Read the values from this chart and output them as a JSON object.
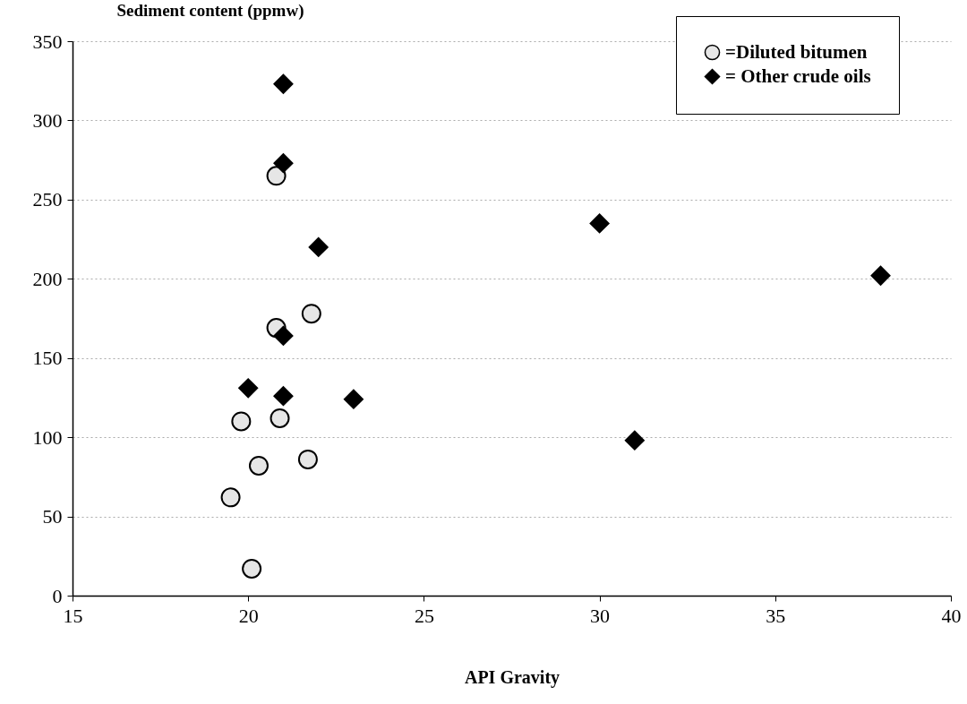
{
  "chart_data": {
    "type": "scatter",
    "ylabel": "Sediment content (ppmw)",
    "xlabel": "API Gravity",
    "xlim": [
      15,
      40
    ],
    "xticks": [
      15,
      20,
      25,
      30,
      35,
      40
    ],
    "ylim": [
      0,
      350
    ],
    "yticks": [
      0,
      50,
      100,
      150,
      200,
      250,
      300,
      350
    ],
    "grid": "y",
    "legend": "top right",
    "series": [
      {
        "name": "=Diluted bitumen",
        "color": "#e6e6e6",
        "marker": "circle",
        "x": [
          20.8,
          20.8,
          21.8,
          19.8,
          20.9,
          20.3,
          21.7,
          19.5,
          20.1
        ],
        "values": [
          265,
          169,
          178,
          110,
          112,
          82,
          86,
          62,
          17
        ]
      },
      {
        "name": "= Other crude oils",
        "color": "#000000",
        "marker": "diamond",
        "x": [
          21,
          21,
          22,
          21,
          20,
          21,
          23,
          30,
          38,
          31
        ],
        "values": [
          323,
          273,
          220,
          164,
          131,
          126,
          124,
          235,
          202,
          98
        ]
      }
    ]
  }
}
